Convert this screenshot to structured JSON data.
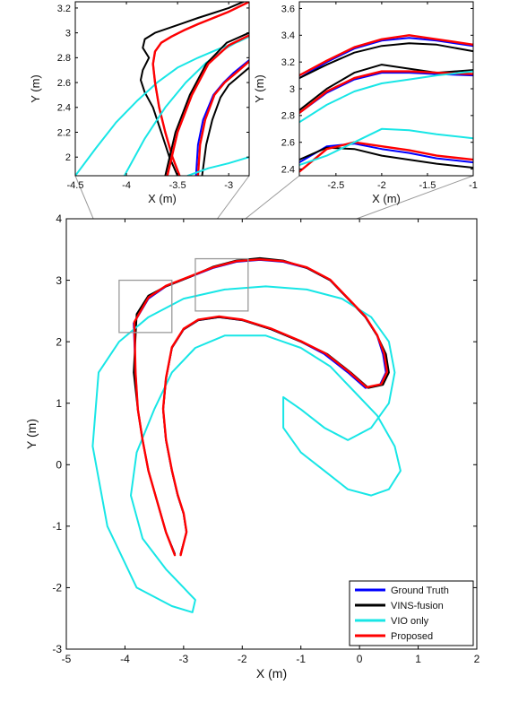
{
  "figure": {
    "legend_position": "bottom-right"
  },
  "chart_data": [
    {
      "type": "line",
      "panel": "main",
      "xlabel": "X (m)",
      "ylabel": "Y (m)",
      "xlim": [
        -5,
        2
      ],
      "ylim": [
        -3,
        4
      ],
      "xticks": [
        -5,
        -4,
        -3,
        -2,
        -1,
        0,
        1,
        2
      ],
      "yticks": [
        -3,
        -2,
        -1,
        0,
        1,
        2,
        3,
        4
      ],
      "grid": false,
      "legend": [
        "Ground Truth",
        "VINS-fusion",
        "VIO only",
        "Proposed"
      ],
      "zoom_boxes": [
        {
          "xlim": [
            -4.1,
            -3.2
          ],
          "ylim": [
            2.15,
            3.0
          ]
        },
        {
          "xlim": [
            -2.8,
            -1.9
          ],
          "ylim": [
            2.5,
            3.35
          ]
        }
      ],
      "series": [
        {
          "name": "Ground Truth",
          "color": "#0000ff",
          "width": 2.0,
          "x": [
            -3.15,
            -3.3,
            -3.45,
            -3.6,
            -3.7,
            -3.78,
            -3.82,
            -3.85,
            -3.6,
            -3.3,
            -2.9,
            -2.5,
            -2.1,
            -1.7,
            -1.3,
            -0.9,
            -0.5,
            -0.2,
            0.1,
            0.3,
            0.4,
            0.45,
            0.35,
            0.1,
            -0.2,
            -0.6,
            -1.0,
            -1.5,
            -2.0,
            -2.4,
            -2.75,
            -3.0,
            -3.2,
            -3.3,
            -3.35,
            -3.3,
            -3.2,
            -3.1,
            -3.0,
            -2.95,
            -3.05
          ],
          "y": [
            -1.45,
            -1.1,
            -0.6,
            -0.1,
            0.4,
            0.9,
            1.5,
            2.3,
            2.7,
            2.9,
            3.05,
            3.2,
            3.3,
            3.33,
            3.3,
            3.2,
            3.0,
            2.7,
            2.4,
            2.1,
            1.8,
            1.5,
            1.3,
            1.25,
            1.5,
            1.8,
            2.0,
            2.2,
            2.35,
            2.4,
            2.35,
            2.2,
            1.9,
            1.4,
            0.9,
            0.4,
            -0.1,
            -0.5,
            -0.8,
            -1.1,
            -1.45
          ]
        },
        {
          "name": "VINS-fusion",
          "color": "#000000",
          "width": 2.0,
          "x": [
            -3.15,
            -3.3,
            -3.45,
            -3.6,
            -3.7,
            -3.78,
            -3.85,
            -3.8,
            -3.6,
            -3.3,
            -2.9,
            -2.5,
            -2.1,
            -1.7,
            -1.3,
            -0.9,
            -0.5,
            -0.2,
            0.1,
            0.3,
            0.45,
            0.5,
            0.4,
            0.15,
            -0.15,
            -0.55,
            -1.0,
            -1.5,
            -2.0,
            -2.4,
            -2.75,
            -3.0,
            -3.2,
            -3.3,
            -3.35,
            -3.3,
            -3.2,
            -3.1,
            -3.0,
            -2.95,
            -3.05
          ],
          "y": [
            -1.45,
            -1.1,
            -0.6,
            -0.1,
            0.4,
            0.9,
            1.5,
            2.45,
            2.75,
            2.9,
            3.05,
            3.22,
            3.32,
            3.36,
            3.32,
            3.2,
            3.0,
            2.7,
            2.4,
            2.1,
            1.8,
            1.5,
            1.3,
            1.25,
            1.5,
            1.8,
            2.0,
            2.2,
            2.35,
            2.4,
            2.35,
            2.2,
            1.9,
            1.4,
            0.9,
            0.4,
            -0.1,
            -0.5,
            -0.8,
            -1.1,
            -1.45
          ]
        },
        {
          "name": "VIO only",
          "color": "#18e6e6",
          "width": 2.0,
          "x": [
            -2.85,
            -3.2,
            -3.8,
            -4.3,
            -4.55,
            -4.45,
            -4.1,
            -3.6,
            -3.0,
            -2.3,
            -1.6,
            -0.9,
            -0.3,
            0.2,
            0.5,
            0.6,
            0.5,
            0.2,
            -0.2,
            -0.6,
            -1.0,
            -1.3,
            -1.3,
            -1.0,
            -0.6,
            -0.2,
            0.2,
            0.5,
            0.7,
            0.6,
            0.3,
            -0.1,
            -0.5,
            -1.0,
            -1.6,
            -2.3,
            -2.8,
            -3.2,
            -3.5,
            -3.8,
            -3.9,
            -3.7,
            -3.3,
            -3.0,
            -2.9,
            -2.8,
            -2.85
          ],
          "y": [
            -2.4,
            -2.3,
            -2.0,
            -1.0,
            0.3,
            1.5,
            2.0,
            2.4,
            2.7,
            2.85,
            2.9,
            2.85,
            2.7,
            2.4,
            2.0,
            1.5,
            1.0,
            0.6,
            0.4,
            0.6,
            0.9,
            1.1,
            0.6,
            0.2,
            -0.1,
            -0.4,
            -0.5,
            -0.4,
            -0.1,
            0.3,
            0.8,
            1.2,
            1.6,
            1.9,
            2.1,
            2.1,
            1.9,
            1.5,
            0.9,
            0.2,
            -0.5,
            -1.2,
            -1.7,
            -2.0,
            -2.1,
            -2.2,
            -2.4
          ]
        },
        {
          "name": "Proposed",
          "color": "#ff0000",
          "width": 2.4,
          "x": [
            -3.15,
            -3.3,
            -3.45,
            -3.6,
            -3.7,
            -3.78,
            -3.82,
            -3.84,
            -3.6,
            -3.3,
            -2.9,
            -2.5,
            -2.1,
            -1.7,
            -1.3,
            -0.9,
            -0.5,
            -0.2,
            0.1,
            0.3,
            0.42,
            0.47,
            0.37,
            0.12,
            -0.18,
            -0.58,
            -1.0,
            -1.5,
            -2.0,
            -2.4,
            -2.75,
            -3.0,
            -3.2,
            -3.3,
            -3.35,
            -3.3,
            -3.2,
            -3.1,
            -3.0,
            -2.95,
            -3.05
          ],
          "y": [
            -1.47,
            -1.1,
            -0.6,
            -0.1,
            0.4,
            0.9,
            1.5,
            2.32,
            2.72,
            2.91,
            3.06,
            3.21,
            3.31,
            3.34,
            3.31,
            3.21,
            3.01,
            2.71,
            2.41,
            2.11,
            1.81,
            1.51,
            1.31,
            1.26,
            1.51,
            1.81,
            2.01,
            2.21,
            2.36,
            2.41,
            2.36,
            2.21,
            1.91,
            1.41,
            0.91,
            0.41,
            -0.09,
            -0.49,
            -0.79,
            -1.09,
            -1.47
          ]
        }
      ]
    },
    {
      "type": "line",
      "panel": "inset-left",
      "xlabel": "X (m)",
      "ylabel": "Y (m)",
      "xlim": [
        -4.5,
        -2.8
      ],
      "ylim": [
        1.85,
        3.25
      ],
      "xticks": [
        -4.5,
        -4,
        -3.5,
        -3
      ],
      "xtick_labels": [
        "-4.5",
        "-4",
        "-3.5",
        "-3"
      ],
      "yticks": [
        2,
        2.2,
        2.4,
        2.6,
        2.8,
        3,
        3.2
      ],
      "ytick_labels": [
        "2",
        "2.2",
        "2.4",
        "2.6",
        "2.8",
        "3",
        "3.2"
      ],
      "grid": false,
      "series": [
        {
          "name": "Ground Truth",
          "color": "#0000ff",
          "width": 2.0,
          "x": [
            -3.48,
            -3.55,
            -3.62,
            -3.68,
            -3.72,
            -3.74,
            -3.72,
            -3.66,
            -3.56,
            -3.44,
            -3.3,
            -3.15,
            -3.0,
            -2.8
          ],
          "y": [
            1.85,
            2.0,
            2.2,
            2.4,
            2.6,
            2.75,
            2.85,
            2.92,
            2.97,
            3.02,
            3.07,
            3.12,
            3.17,
            3.25
          ]
        },
        {
          "name": "VINS-fusion",
          "color": "#000000",
          "width": 2.0,
          "x": [
            -3.5,
            -3.58,
            -3.66,
            -3.74,
            -3.82,
            -3.86,
            -3.84,
            -3.78,
            -3.84,
            -3.82,
            -3.72,
            -3.58,
            -3.44,
            -3.3,
            -3.15,
            -3.0,
            -2.8
          ],
          "y": [
            1.85,
            2.0,
            2.2,
            2.4,
            2.52,
            2.62,
            2.7,
            2.8,
            2.88,
            2.95,
            3.0,
            3.04,
            3.08,
            3.12,
            3.16,
            3.2,
            3.27
          ]
        },
        {
          "name": "VIO only",
          "color": "#18e6e6",
          "width": 2.0,
          "x": [
            -4.5,
            -4.3,
            -4.1,
            -3.9,
            -3.7,
            -3.5,
            -3.3,
            -3.1,
            -2.9,
            -2.8
          ],
          "y": [
            1.85,
            2.07,
            2.28,
            2.45,
            2.6,
            2.72,
            2.8,
            2.87,
            2.93,
            2.97
          ]
        },
        {
          "name": "Proposed",
          "color": "#ff0000",
          "width": 2.4,
          "x": [
            -3.48,
            -3.55,
            -3.62,
            -3.68,
            -3.72,
            -3.74,
            -3.72,
            -3.66,
            -3.56,
            -3.44,
            -3.3,
            -3.15,
            -3.0,
            -2.8
          ],
          "y": [
            1.85,
            2.0,
            2.2,
            2.4,
            2.6,
            2.75,
            2.85,
            2.92,
            2.97,
            3.02,
            3.07,
            3.12,
            3.17,
            3.25
          ]
        },
        {
          "name": "Ground Truth",
          "color": "#0000ff",
          "width": 2.0,
          "x": [
            -3.32,
            -3.3,
            -3.25,
            -3.15,
            -3.05,
            -2.95,
            -2.8
          ],
          "y": [
            1.85,
            2.1,
            2.3,
            2.5,
            2.6,
            2.68,
            2.78
          ]
        },
        {
          "name": "VINS-fusion",
          "color": "#000000",
          "width": 2.0,
          "x": [
            -3.26,
            -3.22,
            -3.16,
            -3.08,
            -3.0,
            -2.9,
            -2.8
          ],
          "y": [
            1.85,
            2.1,
            2.3,
            2.48,
            2.58,
            2.65,
            2.72
          ]
        },
        {
          "name": "Proposed",
          "color": "#ff0000",
          "width": 2.4,
          "x": [
            -3.3,
            -3.28,
            -3.23,
            -3.14,
            -3.04,
            -2.94,
            -2.8
          ],
          "y": [
            1.85,
            2.1,
            2.3,
            2.5,
            2.6,
            2.67,
            2.77
          ]
        },
        {
          "name": "VIO only",
          "color": "#18e6e6",
          "width": 2.0,
          "x": [
            -4.02,
            -3.82,
            -3.62,
            -3.42,
            -3.22,
            -3.02,
            -2.8
          ],
          "y": [
            1.85,
            2.15,
            2.4,
            2.6,
            2.76,
            2.88,
            2.98
          ]
        },
        {
          "name": "Ground Truth",
          "color": "#0000ff",
          "width": 2.0,
          "x": [
            -3.6,
            -3.5,
            -3.36,
            -3.2,
            -3.0,
            -2.8
          ],
          "y": [
            1.85,
            2.2,
            2.5,
            2.75,
            2.9,
            2.98
          ]
        },
        {
          "name": "VINS-fusion",
          "color": "#000000",
          "width": 2.0,
          "x": [
            -3.62,
            -3.52,
            -3.38,
            -3.22,
            -3.02,
            -2.8
          ],
          "y": [
            1.85,
            2.2,
            2.5,
            2.75,
            2.92,
            3.0
          ]
        },
        {
          "name": "Proposed",
          "color": "#ff0000",
          "width": 2.4,
          "x": [
            -3.6,
            -3.5,
            -3.36,
            -3.2,
            -3.0,
            -2.8
          ],
          "y": [
            1.85,
            2.2,
            2.5,
            2.75,
            2.9,
            2.98
          ]
        },
        {
          "name": "VIO only",
          "color": "#18e6e6",
          "width": 2.0,
          "x": [
            -3.4,
            -3.2,
            -3.0,
            -2.8
          ],
          "y": [
            1.85,
            1.91,
            1.95,
            2.0
          ]
        }
      ]
    },
    {
      "type": "line",
      "panel": "inset-right",
      "xlabel": "X (m)",
      "ylabel": "Y (m)",
      "xlim": [
        -2.9,
        -1.0
      ],
      "ylim": [
        2.35,
        3.65
      ],
      "xticks": [
        -2.5,
        -2,
        -1.5,
        -1
      ],
      "xtick_labels": [
        "-2.5",
        "-2",
        "-1.5",
        "-1"
      ],
      "yticks": [
        2.4,
        2.6,
        2.8,
        3,
        3.2,
        3.4,
        3.6
      ],
      "ytick_labels": [
        "2.4",
        "2.6",
        "2.8",
        "3",
        "3.2",
        "3.4",
        "3.6"
      ],
      "grid": false,
      "series": [
        {
          "name": "Ground Truth",
          "color": "#0000ff",
          "width": 2.0,
          "x": [
            -2.9,
            -2.6,
            -2.3,
            -2.0,
            -1.7,
            -1.4,
            -1.0
          ],
          "y": [
            3.08,
            3.2,
            3.3,
            3.36,
            3.38,
            3.36,
            3.32
          ]
        },
        {
          "name": "VINS-fusion",
          "color": "#000000",
          "width": 2.0,
          "x": [
            -2.9,
            -2.6,
            -2.3,
            -2.0,
            -1.7,
            -1.4,
            -1.0
          ],
          "y": [
            3.08,
            3.18,
            3.27,
            3.32,
            3.34,
            3.33,
            3.28
          ]
        },
        {
          "name": "Proposed",
          "color": "#ff0000",
          "width": 2.4,
          "x": [
            -2.9,
            -2.6,
            -2.3,
            -2.0,
            -1.7,
            -1.4,
            -1.0
          ],
          "y": [
            3.1,
            3.21,
            3.31,
            3.37,
            3.4,
            3.37,
            3.33
          ]
        },
        {
          "name": "Ground Truth",
          "color": "#0000ff",
          "width": 2.0,
          "x": [
            -2.9,
            -2.6,
            -2.3,
            -2.0,
            -1.7,
            -1.4,
            -1.0
          ],
          "y": [
            2.82,
            2.97,
            3.07,
            3.12,
            3.12,
            3.11,
            3.1
          ]
        },
        {
          "name": "VINS-fusion",
          "color": "#000000",
          "width": 2.0,
          "x": [
            -2.9,
            -2.6,
            -2.3,
            -2.0,
            -1.7,
            -1.4,
            -1.0
          ],
          "y": [
            2.84,
            3.0,
            3.12,
            3.18,
            3.15,
            3.12,
            3.14
          ]
        },
        {
          "name": "Proposed",
          "color": "#ff0000",
          "width": 2.4,
          "x": [
            -2.9,
            -2.6,
            -2.3,
            -2.0,
            -1.7,
            -1.4,
            -1.0
          ],
          "y": [
            2.82,
            2.98,
            3.08,
            3.13,
            3.13,
            3.12,
            3.11
          ]
        },
        {
          "name": "VIO only",
          "color": "#18e6e6",
          "width": 2.0,
          "x": [
            -2.9,
            -2.6,
            -2.3,
            -2.0,
            -1.7,
            -1.4,
            -1.0
          ],
          "y": [
            2.75,
            2.88,
            2.98,
            3.04,
            3.07,
            3.1,
            3.13
          ]
        },
        {
          "name": "Ground Truth",
          "color": "#0000ff",
          "width": 2.0,
          "x": [
            -2.9,
            -2.6,
            -2.3,
            -2.0,
            -1.7,
            -1.4,
            -1.0
          ],
          "y": [
            2.45,
            2.57,
            2.59,
            2.55,
            2.52,
            2.48,
            2.45
          ]
        },
        {
          "name": "VINS-fusion",
          "color": "#000000",
          "width": 2.0,
          "x": [
            -2.9,
            -2.6,
            -2.3,
            -2.0,
            -1.7,
            -1.4,
            -1.0
          ],
          "y": [
            2.47,
            2.56,
            2.55,
            2.5,
            2.47,
            2.44,
            2.41
          ]
        },
        {
          "name": "Proposed",
          "color": "#ff0000",
          "width": 2.4,
          "x": [
            -2.9,
            -2.6,
            -2.3,
            -2.0,
            -1.7,
            -1.4,
            -1.0
          ],
          "y": [
            2.38,
            2.55,
            2.6,
            2.57,
            2.54,
            2.5,
            2.47
          ]
        },
        {
          "name": "VIO only",
          "color": "#18e6e6",
          "width": 2.0,
          "x": [
            -2.9,
            -2.6,
            -2.3,
            -2.0,
            -1.7,
            -1.4,
            -1.0
          ],
          "y": [
            2.43,
            2.5,
            2.6,
            2.7,
            2.69,
            2.66,
            2.63
          ]
        }
      ]
    }
  ]
}
